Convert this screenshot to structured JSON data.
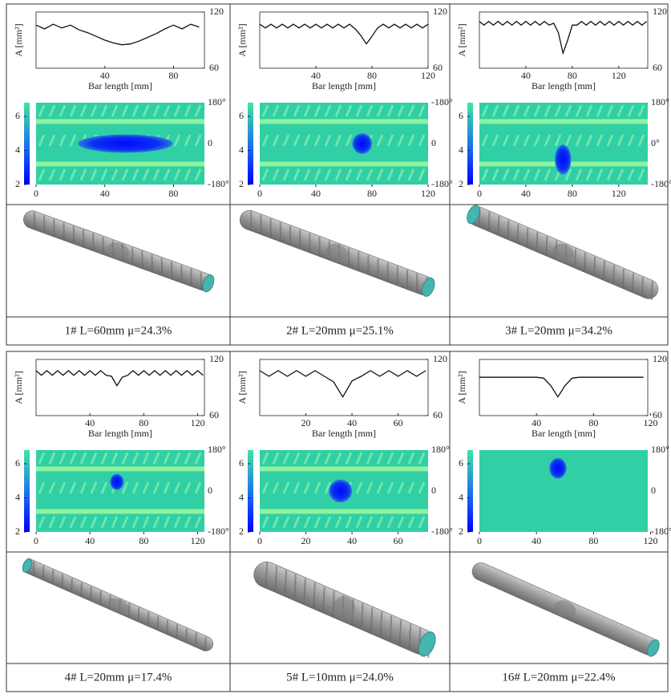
{
  "panels": [
    {
      "caption": "1# L=60mm μ=24.3%",
      "profile": {
        "type": "line",
        "xlabel": "Bar length [mm]",
        "ylabel": "A [mm²]",
        "xlim": [
          0,
          98
        ],
        "ylim": [
          60,
          120
        ],
        "xticks": [
          40,
          80
        ],
        "yticks": [
          60,
          120
        ],
        "x": [
          0,
          5,
          10,
          15,
          20,
          25,
          30,
          35,
          40,
          45,
          50,
          55,
          60,
          65,
          70,
          75,
          80,
          85,
          90,
          95
        ],
        "values": [
          106,
          102,
          107,
          103,
          106,
          101,
          98,
          94,
          90,
          87,
          85,
          86,
          89,
          93,
          97,
          102,
          106,
          102,
          107,
          104
        ]
      },
      "map": {
        "type": "heatmap",
        "xlim": [
          0,
          98
        ],
        "xticks": [
          0,
          40,
          80
        ],
        "ylim": [
          -180,
          180
        ],
        "angle_labels": [
          "180°",
          "0",
          "-180°"
        ],
        "clim": [
          2,
          6.8
        ],
        "cticks": [
          2,
          4,
          6
        ],
        "defect": {
          "x": 52,
          "angle": 0,
          "width": 55,
          "height": 80
        }
      }
    },
    {
      "caption": "2# L=20mm μ=25.1%",
      "profile": {
        "type": "line",
        "xlabel": "Bar length [mm]",
        "ylabel": "A [mm²]",
        "xlim": [
          0,
          120
        ],
        "ylim": [
          60,
          120
        ],
        "xticks": [
          40,
          80,
          120
        ],
        "yticks": [
          60,
          120
        ],
        "x": [
          0,
          4,
          8,
          12,
          16,
          20,
          24,
          28,
          32,
          36,
          40,
          44,
          48,
          52,
          56,
          60,
          64,
          68,
          72,
          76,
          80,
          84,
          88,
          92,
          96,
          100,
          104,
          108,
          112,
          116,
          120
        ],
        "values": [
          107,
          103,
          107,
          103,
          107,
          103,
          107,
          103,
          107,
          103,
          107,
          103,
          107,
          103,
          107,
          103,
          107,
          102,
          95,
          86,
          94,
          103,
          107,
          103,
          107,
          103,
          107,
          103,
          107,
          103,
          107
        ]
      },
      "map": {
        "type": "heatmap",
        "xlim": [
          0,
          120
        ],
        "xticks": [
          0,
          40,
          80,
          120
        ],
        "ylim": [
          -180,
          180
        ],
        "angle_labels": [
          "-180°",
          "0",
          "-180°"
        ],
        "clim": [
          2,
          6.8
        ],
        "cticks": [
          2,
          4,
          6
        ],
        "defect": {
          "x": 73,
          "angle": 0,
          "width": 14,
          "height": 90
        }
      }
    },
    {
      "caption": "3# L=20mm μ=34.2%",
      "profile": {
        "type": "line",
        "xlabel": "Bar length [mm]",
        "ylabel": "A [mm²]",
        "xlim": [
          0,
          145
        ],
        "ylim": [
          60,
          120
        ],
        "xticks": [
          40,
          80,
          120
        ],
        "yticks": [
          60,
          120
        ],
        "x": [
          0,
          4,
          8,
          12,
          16,
          20,
          24,
          28,
          32,
          36,
          40,
          44,
          48,
          52,
          56,
          60,
          64,
          68,
          72,
          76,
          80,
          84,
          88,
          92,
          96,
          100,
          104,
          108,
          112,
          116,
          120,
          124,
          128,
          132,
          136,
          140,
          144
        ],
        "values": [
          110,
          106,
          110,
          106,
          110,
          106,
          110,
          106,
          110,
          106,
          110,
          106,
          110,
          106,
          110,
          106,
          108,
          98,
          76,
          90,
          106,
          106,
          110,
          106,
          110,
          106,
          110,
          106,
          110,
          106,
          110,
          106,
          110,
          106,
          110,
          106,
          110
        ]
      },
      "map": {
        "type": "heatmap",
        "xlim": [
          0,
          145
        ],
        "xticks": [
          0,
          40,
          80,
          120
        ],
        "ylim": [
          -180,
          180
        ],
        "angle_labels": [
          "180°",
          "0°",
          "-180°"
        ],
        "clim": [
          2,
          6.8
        ],
        "cticks": [
          2,
          4,
          6
        ],
        "defect": {
          "x": 72,
          "angle": -70,
          "width": 14,
          "height": 130
        }
      }
    },
    {
      "caption": "4# L=20mm μ=17.4%",
      "profile": {
        "type": "line",
        "xlabel": "Bar length [mm]",
        "ylabel": "A [mm²]",
        "xlim": [
          0,
          125
        ],
        "ylim": [
          60,
          120
        ],
        "xticks": [
          40,
          80,
          120
        ],
        "yticks": [
          60,
          120
        ],
        "x": [
          0,
          4,
          8,
          12,
          16,
          20,
          24,
          28,
          32,
          36,
          40,
          44,
          48,
          52,
          56,
          60,
          64,
          68,
          72,
          76,
          80,
          84,
          88,
          92,
          96,
          100,
          104,
          108,
          112,
          116,
          120,
          124
        ],
        "values": [
          108,
          103,
          108,
          103,
          108,
          103,
          108,
          103,
          108,
          103,
          108,
          103,
          108,
          103,
          102,
          92,
          101,
          103,
          108,
          103,
          108,
          103,
          108,
          103,
          108,
          103,
          108,
          103,
          108,
          103,
          108,
          103
        ]
      },
      "map": {
        "type": "heatmap",
        "xlim": [
          0,
          125
        ],
        "xticks": [
          0,
          40,
          80,
          120
        ],
        "ylim": [
          -180,
          180
        ],
        "angle_labels": [
          "180°",
          "0",
          "-180°"
        ],
        "clim": [
          2,
          6.8
        ],
        "cticks": [
          2,
          4,
          6
        ],
        "defect": {
          "x": 60,
          "angle": 40,
          "width": 10,
          "height": 70
        }
      }
    },
    {
      "caption": "5# L=10mm μ=24.0%",
      "profile": {
        "type": "line",
        "xlabel": "Bar length [mm]",
        "ylabel": "A [mm²]",
        "xlim": [
          0,
          73
        ],
        "ylim": [
          60,
          120
        ],
        "xticks": [
          20,
          40,
          60
        ],
        "yticks": [
          60,
          120
        ],
        "x": [
          0,
          4,
          8,
          12,
          16,
          20,
          24,
          28,
          32,
          36,
          40,
          44,
          48,
          52,
          56,
          60,
          64,
          68,
          72
        ],
        "values": [
          108,
          102,
          108,
          102,
          108,
          102,
          108,
          102,
          96,
          80,
          97,
          102,
          108,
          102,
          108,
          102,
          108,
          102,
          108
        ]
      },
      "map": {
        "type": "heatmap",
        "xlim": [
          0,
          73
        ],
        "xticks": [
          0,
          20,
          40,
          60
        ],
        "ylim": [
          -180,
          180
        ],
        "angle_labels": [
          "180°",
          "0",
          "-180°"
        ],
        "clim": [
          2,
          6.8
        ],
        "cticks": [
          2,
          4,
          6
        ],
        "defect": {
          "x": 35,
          "angle": 0,
          "width": 10,
          "height": 100
        }
      }
    },
    {
      "caption": "16# L=20mm μ=22.4%",
      "profile": {
        "type": "line",
        "xlabel": "Bar length [mm]",
        "ylabel": "A [mm²]",
        "xlim": [
          0,
          118
        ],
        "ylim": [
          60,
          120
        ],
        "xticks": [
          40,
          80,
          120
        ],
        "yticks": [
          60,
          120
        ],
        "x": [
          0,
          5,
          10,
          15,
          20,
          25,
          30,
          35,
          40,
          45,
          50,
          55,
          60,
          65,
          70,
          75,
          80,
          85,
          90,
          95,
          100,
          105,
          110,
          115
        ],
        "values": [
          101,
          101,
          101,
          101,
          101,
          101,
          101,
          101,
          101,
          100,
          92,
          80,
          92,
          100,
          101,
          101,
          101,
          101,
          101,
          101,
          101,
          101,
          101,
          101
        ]
      },
      "map": {
        "type": "heatmap",
        "xlim": [
          0,
          118
        ],
        "xticks": [
          0,
          40,
          80,
          120
        ],
        "ylim": [
          -180,
          180
        ],
        "angle_labels": [
          "180°",
          "0",
          "-180°"
        ],
        "clim": [
          2,
          6.8
        ],
        "cticks": [
          2,
          4,
          6
        ],
        "defect": {
          "x": 55,
          "angle": 100,
          "width": 12,
          "height": 90
        }
      }
    }
  ]
}
